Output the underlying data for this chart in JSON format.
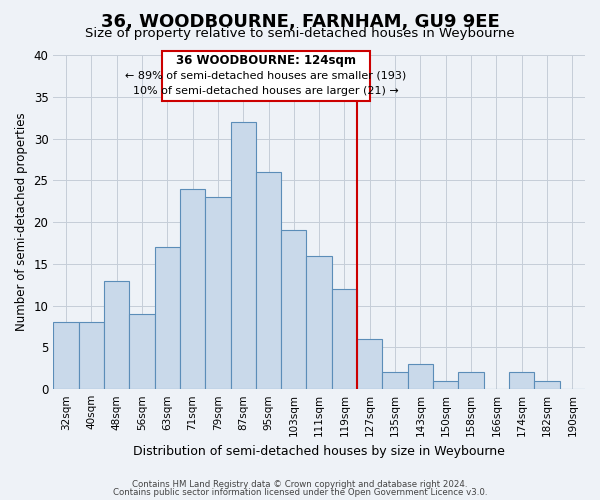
{
  "title": "36, WOODBOURNE, FARNHAM, GU9 9EE",
  "subtitle": "Size of property relative to semi-detached houses in Weybourne",
  "xlabel": "Distribution of semi-detached houses by size in Weybourne",
  "ylabel": "Number of semi-detached properties",
  "categories": [
    "32sqm",
    "40sqm",
    "48sqm",
    "56sqm",
    "63sqm",
    "71sqm",
    "79sqm",
    "87sqm",
    "95sqm",
    "103sqm",
    "111sqm",
    "119sqm",
    "127sqm",
    "135sqm",
    "143sqm",
    "150sqm",
    "158sqm",
    "166sqm",
    "174sqm",
    "182sqm",
    "190sqm"
  ],
  "values": [
    8,
    8,
    13,
    9,
    17,
    24,
    23,
    32,
    26,
    19,
    16,
    12,
    6,
    2,
    3,
    1,
    2,
    0,
    2,
    1,
    0
  ],
  "bar_color": "#c9d9ea",
  "bar_edge_color": "#5b8db8",
  "ylim": [
    0,
    40
  ],
  "yticks": [
    0,
    5,
    10,
    15,
    20,
    25,
    30,
    35,
    40
  ],
  "vline_color": "#cc0000",
  "annotation_title": "36 WOODBOURNE: 124sqm",
  "annotation_line1": "← 89% of semi-detached houses are smaller (193)",
  "annotation_line2": "10% of semi-detached houses are larger (21) →",
  "annotation_box_color": "#ffffff",
  "annotation_box_edge": "#cc0000",
  "footer_line1": "Contains HM Land Registry data © Crown copyright and database right 2024.",
  "footer_line2": "Contains public sector information licensed under the Open Government Licence v3.0.",
  "background_color": "#eef2f7",
  "plot_background": "#eef2f7",
  "grid_color": "#c5cdd8",
  "title_fontsize": 13,
  "subtitle_fontsize": 9.5
}
